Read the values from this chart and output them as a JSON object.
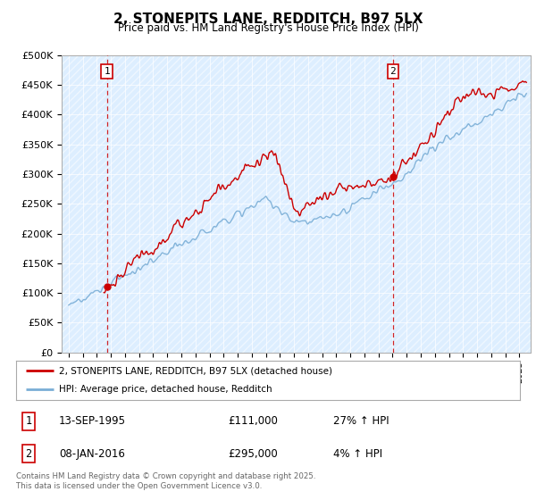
{
  "title": "2, STONEPITS LANE, REDDITCH, B97 5LX",
  "subtitle": "Price paid vs. HM Land Registry's House Price Index (HPI)",
  "ylabel_ticks": [
    "£0",
    "£50K",
    "£100K",
    "£150K",
    "£200K",
    "£250K",
    "£300K",
    "£350K",
    "£400K",
    "£450K",
    "£500K"
  ],
  "ytick_values": [
    0,
    50000,
    100000,
    150000,
    200000,
    250000,
    300000,
    350000,
    400000,
    450000,
    500000
  ],
  "ylim": [
    0,
    500000
  ],
  "xlim_start": 1992.5,
  "xlim_end": 2025.8,
  "hpi_color": "#7aaed6",
  "price_color": "#cc0000",
  "bg_color": "#ddeeff",
  "sale1_x": 1995.71,
  "sale1_y": 111000,
  "sale1_label": "1",
  "sale2_x": 2016.03,
  "sale2_y": 295000,
  "sale2_label": "2",
  "legend_line1": "2, STONEPITS LANE, REDDITCH, B97 5LX (detached house)",
  "legend_line2": "HPI: Average price, detached house, Redditch",
  "table_row1": [
    "1",
    "13-SEP-1995",
    "£111,000",
    "27% ↑ HPI"
  ],
  "table_row2": [
    "2",
    "08-JAN-2016",
    "£295,000",
    "4% ↑ HPI"
  ],
  "footnote": "Contains HM Land Registry data © Crown copyright and database right 2025.\nThis data is licensed under the Open Government Licence v3.0."
}
